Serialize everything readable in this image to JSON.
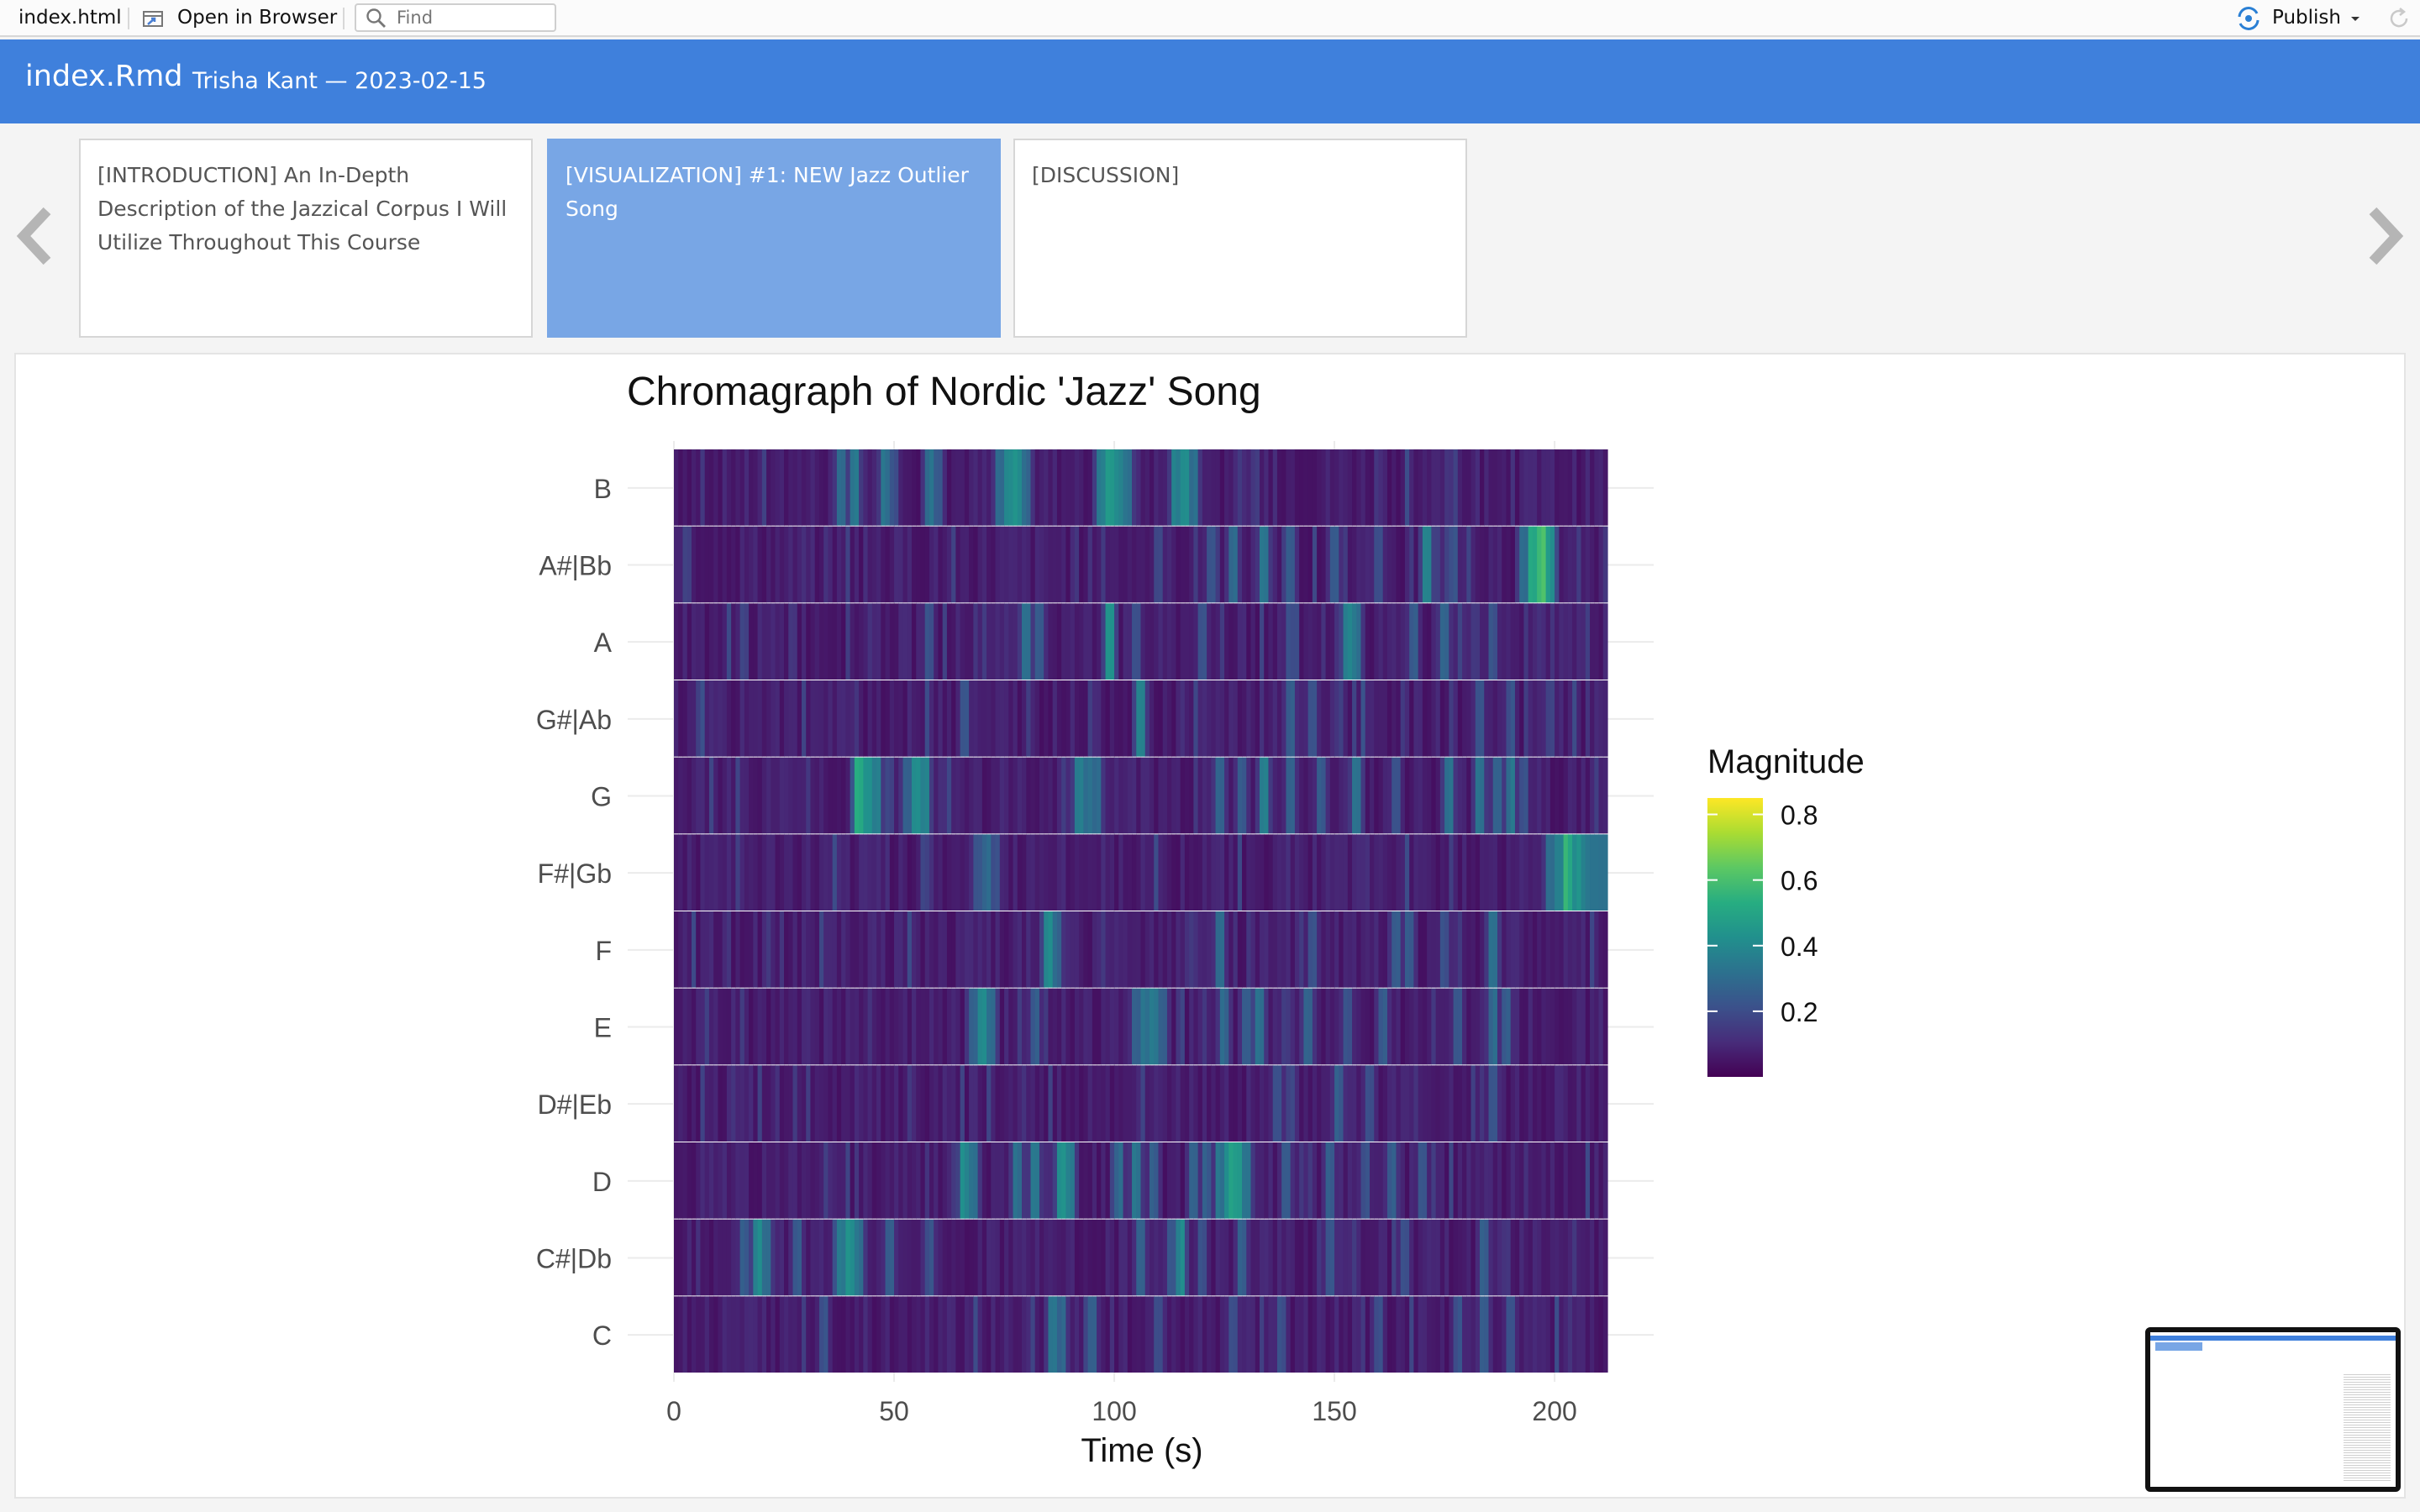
{
  "toolbar": {
    "file_name": "index.html",
    "open_browser_label": "Open in Browser",
    "find_placeholder": "Find",
    "publish_label": "Publish"
  },
  "header": {
    "title": "index.Rmd",
    "author_date": "Trisha Kant — 2023-02-15"
  },
  "storyboard": [
    {
      "label": "[INTRODUCTION] An In-Depth Description of the Jazzical Corpus I Will Utilize Throughout This Course",
      "active": false
    },
    {
      "label": "[VISUALIZATION] #1: NEW Jazz Outlier Song",
      "active": true
    },
    {
      "label": "[DISCUSSION]",
      "active": false
    }
  ],
  "colors": {
    "accent": "#3f80dc",
    "active_card": "#78a6e5"
  },
  "icons": {
    "prev": "chevron-left-icon",
    "next": "chevron-right-icon",
    "search": "search-icon",
    "publish": "publish-icon",
    "browser": "open-in-browser-icon",
    "refresh": "refresh-icon"
  },
  "chart_data": {
    "type": "heatmap",
    "title": "Chromagraph of Nordic 'Jazz' Song",
    "xlabel": "Time (s)",
    "ylabel": "",
    "xlim": [
      0,
      212
    ],
    "x_ticks": [
      0,
      50,
      100,
      150,
      200
    ],
    "y_categories": [
      "B",
      "A#|Bb",
      "A",
      "G#|Ab",
      "G",
      "F#|Gb",
      "F",
      "E",
      "D#|Eb",
      "D",
      "C#|Db",
      "C"
    ],
    "legend": {
      "title": "Magnitude",
      "ticks": [
        0.2,
        0.4,
        0.6,
        0.8
      ],
      "range": [
        0,
        0.85
      ],
      "position": "right",
      "colormap": "viridis"
    },
    "base_magnitude": 0.07,
    "highlights": {
      "B": [
        [
          38,
          0.42
        ],
        [
          41,
          0.5
        ],
        [
          48,
          0.45
        ],
        [
          50,
          0.3
        ],
        [
          58,
          0.45
        ],
        [
          60,
          0.35
        ],
        [
          74,
          0.4
        ],
        [
          76,
          0.55
        ],
        [
          78,
          0.6
        ],
        [
          80,
          0.4
        ],
        [
          97,
          0.5
        ],
        [
          99,
          0.6
        ],
        [
          101,
          0.55
        ],
        [
          103,
          0.45
        ],
        [
          114,
          0.5
        ],
        [
          116,
          0.6
        ],
        [
          118,
          0.45
        ]
      ],
      "A#|Bb": [
        [
          122,
          0.3
        ],
        [
          127,
          0.4
        ],
        [
          134,
          0.45
        ],
        [
          140,
          0.35
        ],
        [
          150,
          0.35
        ],
        [
          160,
          0.3
        ],
        [
          171,
          0.55
        ],
        [
          177,
          0.3
        ],
        [
          193,
          0.45
        ],
        [
          195,
          0.75
        ],
        [
          197,
          0.8
        ],
        [
          199,
          0.6
        ]
      ],
      "A": [
        [
          58,
          0.3
        ],
        [
          80,
          0.45
        ],
        [
          83,
          0.35
        ],
        [
          99,
          0.6
        ],
        [
          105,
          0.3
        ],
        [
          120,
          0.3
        ],
        [
          140,
          0.3
        ],
        [
          153,
          0.55
        ],
        [
          155,
          0.45
        ],
        [
          168,
          0.35
        ],
        [
          175,
          0.4
        ],
        [
          186,
          0.3
        ]
      ],
      "G#|Ab": [
        [
          66,
          0.3
        ],
        [
          106,
          0.5
        ],
        [
          140,
          0.35
        ],
        [
          145,
          0.3
        ],
        [
          183,
          0.3
        ],
        [
          190,
          0.3
        ],
        [
          199,
          0.25
        ]
      ],
      "G": [
        [
          42,
          0.75
        ],
        [
          44,
          0.6
        ],
        [
          46,
          0.5
        ],
        [
          53,
          0.4
        ],
        [
          55,
          0.6
        ],
        [
          57,
          0.5
        ],
        [
          92,
          0.5
        ],
        [
          94,
          0.45
        ],
        [
          96,
          0.4
        ],
        [
          124,
          0.4
        ],
        [
          129,
          0.35
        ],
        [
          134,
          0.5
        ],
        [
          140,
          0.35
        ],
        [
          147,
          0.35
        ],
        [
          155,
          0.45
        ],
        [
          164,
          0.3
        ],
        [
          176,
          0.45
        ],
        [
          183,
          0.45
        ],
        [
          187,
          0.4
        ],
        [
          190,
          0.45
        ],
        [
          193,
          0.3
        ]
      ],
      "F#|Gb": [
        [
          57,
          0.25
        ],
        [
          69,
          0.3
        ],
        [
          71,
          0.4
        ],
        [
          73,
          0.3
        ],
        [
          199,
          0.4
        ],
        [
          201,
          0.55
        ],
        [
          203,
          0.75
        ],
        [
          205,
          0.6
        ],
        [
          207,
          0.5
        ],
        [
          209,
          0.48
        ],
        [
          211,
          0.46
        ]
      ],
      "F": [
        [
          85,
          0.55
        ],
        [
          87,
          0.4
        ],
        [
          124,
          0.4
        ],
        [
          145,
          0.3
        ],
        [
          164,
          0.35
        ],
        [
          167,
          0.35
        ],
        [
          175,
          0.3
        ],
        [
          186,
          0.45
        ]
      ],
      "E": [
        [
          68,
          0.4
        ],
        [
          70,
          0.55
        ],
        [
          72,
          0.45
        ],
        [
          82,
          0.35
        ],
        [
          105,
          0.35
        ],
        [
          107,
          0.45
        ],
        [
          109,
          0.5
        ],
        [
          111,
          0.35
        ],
        [
          125,
          0.4
        ],
        [
          130,
          0.35
        ],
        [
          133,
          0.45
        ],
        [
          144,
          0.4
        ],
        [
          153,
          0.3
        ],
        [
          161,
          0.35
        ],
        [
          178,
          0.3
        ],
        [
          186,
          0.4
        ],
        [
          189,
          0.35
        ]
      ],
      "D#|Eb": [
        [
          137,
          0.3
        ],
        [
          140,
          0.25
        ],
        [
          151,
          0.35
        ],
        [
          158,
          0.3
        ],
        [
          186,
          0.3
        ]
      ],
      "D": [
        [
          66,
          0.55
        ],
        [
          68,
          0.45
        ],
        [
          78,
          0.45
        ],
        [
          82,
          0.45
        ],
        [
          88,
          0.6
        ],
        [
          90,
          0.5
        ],
        [
          101,
          0.4
        ],
        [
          105,
          0.45
        ],
        [
          109,
          0.35
        ],
        [
          118,
          0.4
        ],
        [
          121,
          0.35
        ],
        [
          124,
          0.45
        ],
        [
          126,
          0.55
        ],
        [
          127,
          0.65
        ],
        [
          128,
          0.6
        ],
        [
          130,
          0.45
        ],
        [
          139,
          0.35
        ],
        [
          149,
          0.35
        ],
        [
          157,
          0.3
        ],
        [
          163,
          0.35
        ],
        [
          170,
          0.3
        ]
      ],
      "C#|Db": [
        [
          16,
          0.35
        ],
        [
          19,
          0.55
        ],
        [
          21,
          0.45
        ],
        [
          28,
          0.35
        ],
        [
          38,
          0.5
        ],
        [
          40,
          0.6
        ],
        [
          42,
          0.45
        ],
        [
          49,
          0.35
        ],
        [
          58,
          0.3
        ],
        [
          106,
          0.35
        ],
        [
          113,
          0.3
        ],
        [
          115,
          0.55
        ],
        [
          120,
          0.3
        ],
        [
          129,
          0.35
        ],
        [
          149,
          0.3
        ],
        [
          166,
          0.3
        ],
        [
          184,
          0.35
        ]
      ],
      "C": [
        [
          34,
          0.3
        ],
        [
          86,
          0.45
        ],
        [
          88,
          0.4
        ],
        [
          95,
          0.35
        ],
        [
          110,
          0.3
        ],
        [
          127,
          0.3
        ],
        [
          138,
          0.3
        ],
        [
          160,
          0.3
        ],
        [
          178,
          0.3
        ],
        [
          184,
          0.35
        ],
        [
          190,
          0.3
        ]
      ]
    }
  }
}
